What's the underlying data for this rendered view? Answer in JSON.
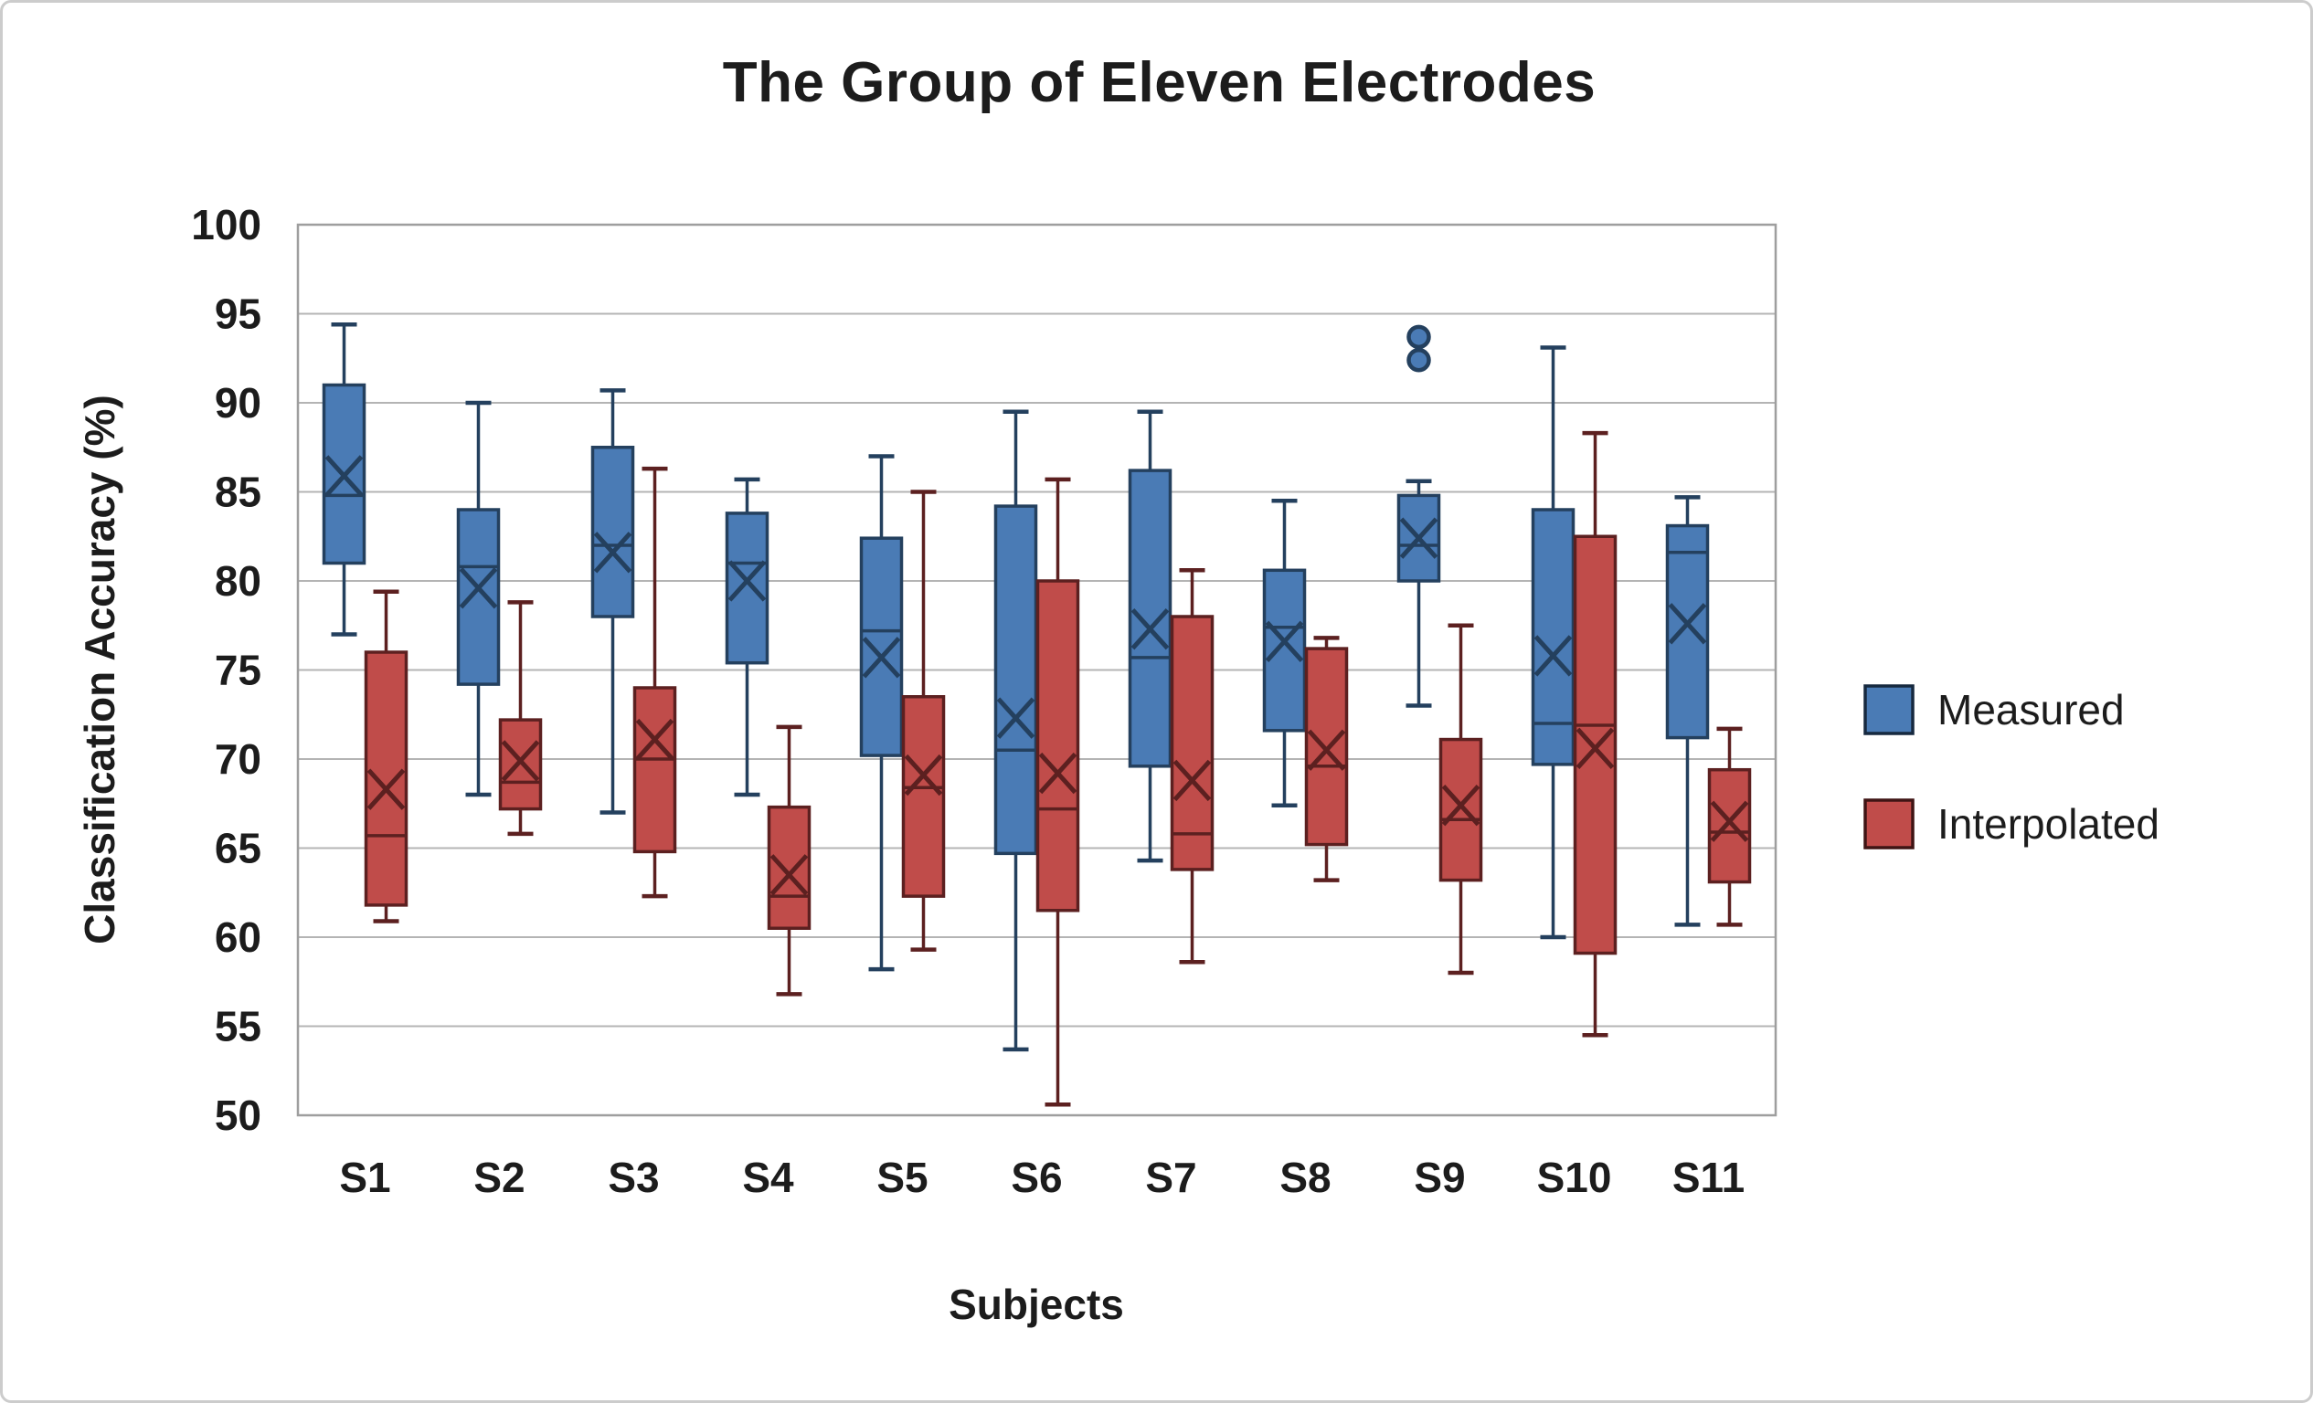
{
  "figure": {
    "title": "The Group of Eleven Electrodes",
    "y_axis_title": "Classification Accuracy (%)",
    "x_axis_title": "Subjects"
  },
  "legend": {
    "position": "right",
    "items": [
      {
        "label": "Measured",
        "fill": "#4A7BB5",
        "stroke": "#16293F"
      },
      {
        "label": "Interpolated",
        "fill": "#C04C4A",
        "stroke": "#3F1414"
      }
    ]
  },
  "colors": {
    "gridline": "#B4B4B4",
    "plot_border": "#9E9E9E",
    "text": "#1C1C1C",
    "background": "#FFFFFF"
  },
  "chart_data": {
    "type": "boxplot",
    "title": "The Group of Eleven Electrodes",
    "xlabel": "Subjects",
    "ylabel": "Classification Accuracy (%)",
    "ylim": [
      50,
      100
    ],
    "ytick_step": 5,
    "grid": true,
    "legend_position": "right",
    "categories": [
      "S1",
      "S2",
      "S3",
      "S4",
      "S5",
      "S6",
      "S7",
      "S8",
      "S9",
      "S10",
      "S11"
    ],
    "series": [
      {
        "name": "Measured",
        "fill": "#4A7BB5",
        "stroke": "#24405E",
        "boxes": [
          {
            "low": 77.0,
            "q1": 81.0,
            "median": 84.8,
            "mean": 85.9,
            "q3": 91.0,
            "high": 94.4,
            "outliers": []
          },
          {
            "low": 68.0,
            "q1": 74.2,
            "median": 80.8,
            "mean": 79.6,
            "q3": 84.0,
            "high": 90.0,
            "outliers": []
          },
          {
            "low": 67.0,
            "q1": 78.0,
            "median": 82.0,
            "mean": 81.6,
            "q3": 87.5,
            "high": 90.7,
            "outliers": []
          },
          {
            "low": 68.0,
            "q1": 75.4,
            "median": 81.0,
            "mean": 80.0,
            "q3": 83.8,
            "high": 85.7,
            "outliers": []
          },
          {
            "low": 58.2,
            "q1": 70.2,
            "median": 77.2,
            "mean": 75.7,
            "q3": 82.4,
            "high": 87.0,
            "outliers": []
          },
          {
            "low": 53.7,
            "q1": 64.7,
            "median": 70.5,
            "mean": 72.3,
            "q3": 84.2,
            "high": 89.5,
            "outliers": []
          },
          {
            "low": 64.3,
            "q1": 69.6,
            "median": 75.7,
            "mean": 77.3,
            "q3": 86.2,
            "high": 89.5,
            "outliers": []
          },
          {
            "low": 67.4,
            "q1": 71.6,
            "median": 77.4,
            "mean": 76.6,
            "q3": 80.6,
            "high": 84.5,
            "outliers": []
          },
          {
            "low": 73.0,
            "q1": 80.0,
            "median": 82.0,
            "mean": 82.4,
            "q3": 84.8,
            "high": 85.6,
            "outliers": [
              92.4,
              93.7
            ]
          },
          {
            "low": 60.0,
            "q1": 69.7,
            "median": 72.0,
            "mean": 75.8,
            "q3": 84.0,
            "high": 93.1,
            "outliers": []
          },
          {
            "low": 60.7,
            "q1": 71.2,
            "median": 81.6,
            "mean": 77.6,
            "q3": 83.1,
            "high": 84.7,
            "outliers": []
          }
        ]
      },
      {
        "name": "Interpolated",
        "fill": "#C04C4A",
        "stroke": "#5C2020",
        "boxes": [
          {
            "low": 60.9,
            "q1": 61.8,
            "median": 65.7,
            "mean": 68.3,
            "q3": 76.0,
            "high": 79.4,
            "outliers": []
          },
          {
            "low": 65.8,
            "q1": 67.2,
            "median": 68.7,
            "mean": 69.9,
            "q3": 72.2,
            "high": 78.8,
            "outliers": []
          },
          {
            "low": 62.3,
            "q1": 64.8,
            "median": 70.0,
            "mean": 71.1,
            "q3": 74.0,
            "high": 86.3,
            "outliers": []
          },
          {
            "low": 56.8,
            "q1": 60.5,
            "median": 62.3,
            "mean": 63.5,
            "q3": 67.3,
            "high": 71.8,
            "outliers": []
          },
          {
            "low": 59.3,
            "q1": 62.3,
            "median": 68.4,
            "mean": 69.1,
            "q3": 73.5,
            "high": 85.0,
            "outliers": []
          },
          {
            "low": 50.6,
            "q1": 61.5,
            "median": 67.2,
            "mean": 69.2,
            "q3": 80.0,
            "high": 85.7,
            "outliers": []
          },
          {
            "low": 58.6,
            "q1": 63.8,
            "median": 65.8,
            "mean": 68.8,
            "q3": 78.0,
            "high": 80.6,
            "outliers": []
          },
          {
            "low": 63.2,
            "q1": 65.2,
            "median": 69.6,
            "mean": 70.5,
            "q3": 76.2,
            "high": 76.8,
            "outliers": []
          },
          {
            "low": 58.0,
            "q1": 63.2,
            "median": 66.6,
            "mean": 67.4,
            "q3": 71.1,
            "high": 77.5,
            "outliers": []
          },
          {
            "low": 54.5,
            "q1": 59.1,
            "median": 71.9,
            "mean": 70.6,
            "q3": 82.5,
            "high": 88.3,
            "outliers": []
          },
          {
            "low": 60.7,
            "q1": 63.1,
            "median": 65.9,
            "mean": 66.5,
            "q3": 69.4,
            "high": 71.7,
            "outliers": []
          }
        ]
      }
    ]
  }
}
